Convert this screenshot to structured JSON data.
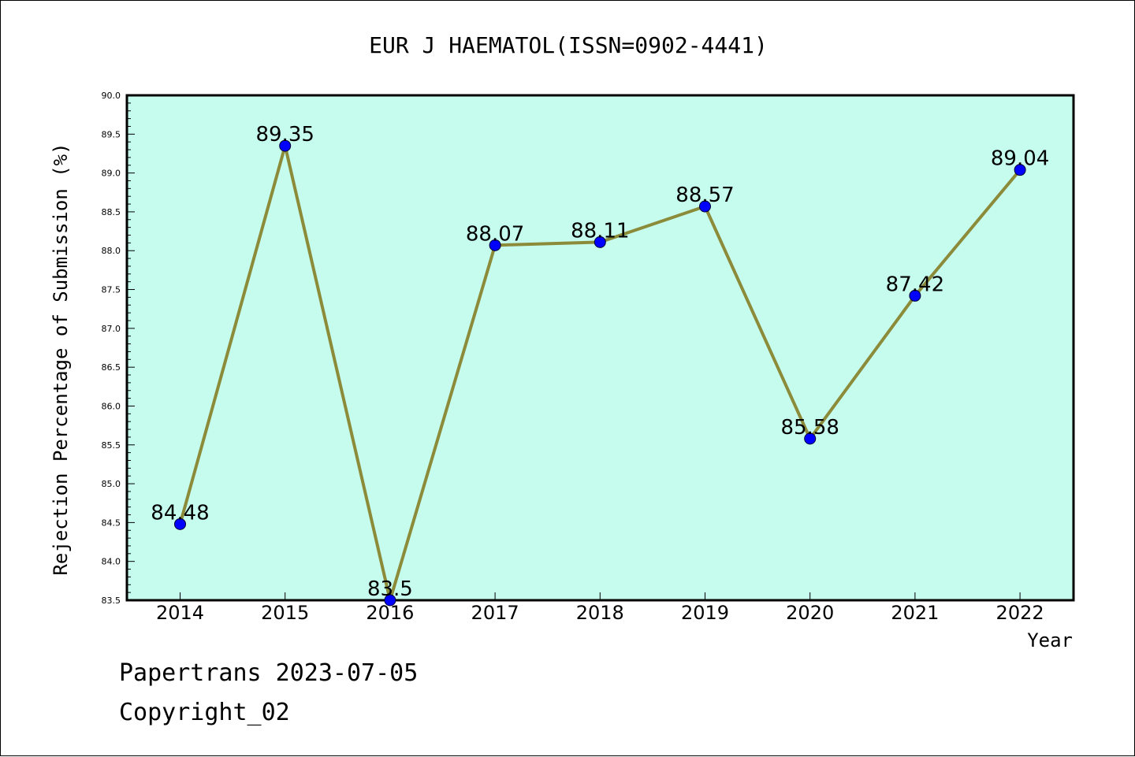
{
  "chart_data": {
    "type": "line",
    "title": "EUR J HAEMATOL(ISSN=0902-4441)",
    "xlabel": "Year",
    "ylabel": "Rejection Percentage of Submission (%)",
    "categories": [
      "2014",
      "2015",
      "2016",
      "2017",
      "2018",
      "2019",
      "2020",
      "2021",
      "2022"
    ],
    "values": [
      84.48,
      89.35,
      83.5,
      88.07,
      88.11,
      88.57,
      85.58,
      87.42,
      89.04
    ],
    "data_labels": [
      "84.48",
      "89.35",
      "83.5",
      "88.07",
      "88.11",
      "88.57",
      "85.58",
      "87.42",
      "89.04"
    ],
    "ylim": [
      83.5,
      90.0
    ],
    "y_ticks": [
      "83.5",
      "84.0",
      "84.5",
      "85.0",
      "85.5",
      "86.0",
      "86.5",
      "87.0",
      "87.5",
      "88.0",
      "88.5",
      "89.0",
      "89.5",
      "90.0"
    ],
    "grid": false,
    "colors": {
      "plot_background": "#c6fced",
      "line": "#8b8b3a",
      "marker": "#0000ff"
    }
  },
  "footer": {
    "line1": "Papertrans 2023-07-05",
    "line2": "Copyright_02"
  }
}
